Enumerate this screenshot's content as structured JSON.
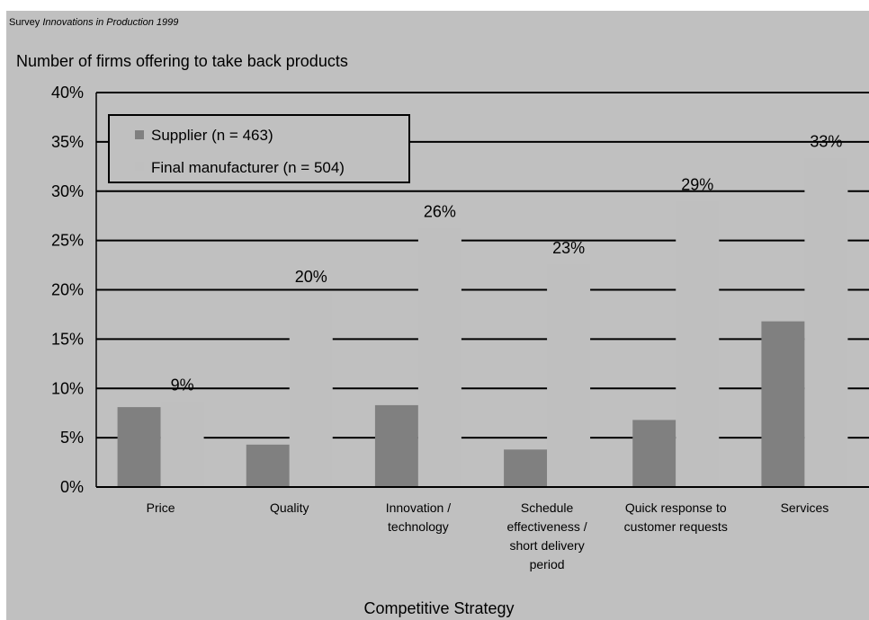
{
  "chart_data": {
    "type": "bar",
    "source_prefix": "Survey",
    "source_title": "Innovations in Production 1999",
    "ylabel": "Number of firms offering to take back products",
    "xlabel": "Competitive Strategy",
    "ylim": [
      0,
      40
    ],
    "yticks": [
      "0%",
      "5%",
      "10%",
      "15%",
      "20%",
      "25%",
      "30%",
      "35%",
      "40%"
    ],
    "grid": true,
    "legend_position": "top-left",
    "categories": [
      [
        "Price"
      ],
      [
        "Quality"
      ],
      [
        "Innovation /",
        "technology"
      ],
      [
        "Schedule",
        "effectiveness /",
        "short delivery",
        "period"
      ],
      [
        "Quick response to",
        "customer requests"
      ],
      [
        "Services"
      ]
    ],
    "series": [
      {
        "name": "Supplier (n = 463)",
        "color": "#808080",
        "values": [
          8.1,
          4.3,
          8.3,
          3.8,
          6.8,
          16.8
        ],
        "labels": []
      },
      {
        "name": "Final manufacturer (n = 504)",
        "color": "#bfbfbf",
        "values": [
          8.7,
          19.7,
          26.3,
          22.6,
          29.0,
          33.4
        ],
        "labels": [
          "9%",
          "20%",
          "26%",
          "23%",
          "29%",
          "33%"
        ]
      }
    ],
    "colors": {
      "panel": "#c0c0c0",
      "legend_bg": "#c0c0c0",
      "grid": "#000000"
    }
  }
}
